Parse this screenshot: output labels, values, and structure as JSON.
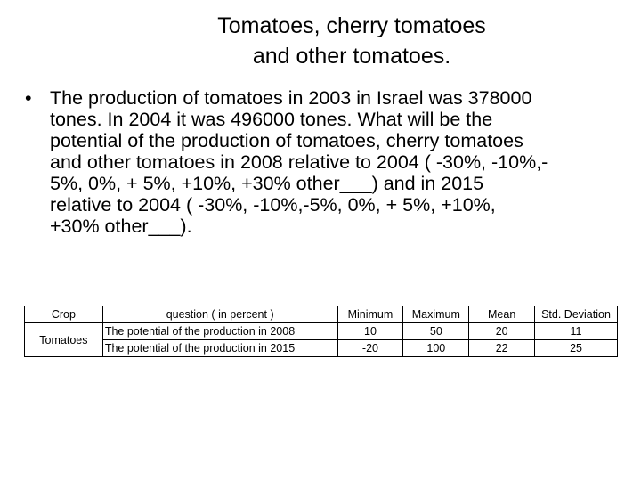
{
  "title": {
    "line1": "Tomatoes, cherry tomatoes",
    "line2": "and other tomatoes."
  },
  "bullet": {
    "symbol": "•",
    "lines": [
      "The production of tomatoes in 2003 in Israel was 378000",
      "tones. In 2004 it was 496000 tones. What will be the",
      "potential of the production of tomatoes, cherry tomatoes",
      "and other tomatoes in 2008 relative to 2004 ( -30%, -10%,-",
      "5%, 0%, + 5%, +10%, +30% other___) and in 2015",
      "relative to 2004 ( -30%, -10%,-5%, 0%, + 5%, +10%,",
      "+30% other___)."
    ]
  },
  "table": {
    "headers": [
      "Crop",
      "question ( in percent )",
      "Minimum",
      "Maximum",
      "Mean",
      "Std. Deviation"
    ],
    "crop": "Tomatoes",
    "rows": [
      {
        "question": "The potential of the production in 2008",
        "minimum": "10",
        "maximum": "50",
        "mean": "20",
        "std": "11"
      },
      {
        "question": "The potential of the production in 2015",
        "minimum": "-20",
        "maximum": "100",
        "mean": "22",
        "std": "25"
      }
    ]
  }
}
